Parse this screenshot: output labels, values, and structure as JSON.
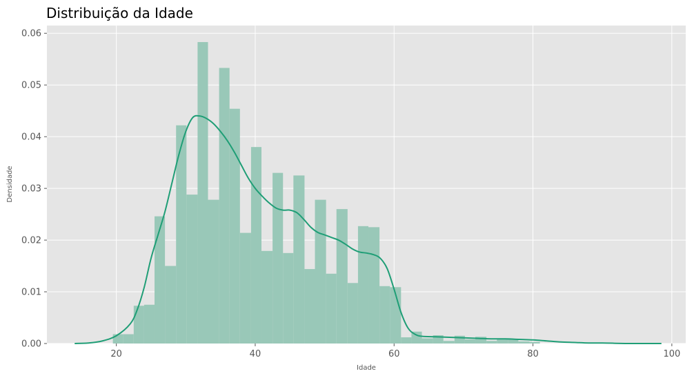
{
  "chart_data": {
    "type": "histogram",
    "title": "Distribuição da Idade",
    "xlabel": "Idade",
    "ylabel": "Densidade",
    "xlim": [
      10,
      102
    ],
    "ylim": [
      0,
      0.0615
    ],
    "xticks": [
      20,
      40,
      60,
      80,
      100
    ],
    "xtick_labels": [
      "20",
      "40",
      "60",
      "80",
      "100"
    ],
    "yticks": [
      0,
      0.01,
      0.02,
      0.03,
      0.04,
      0.05,
      0.06
    ],
    "ytick_labels": [
      "0.00",
      "0.01",
      "0.02",
      "0.03",
      "0.04",
      "0.05",
      "0.06"
    ],
    "grid": true,
    "bars": [
      {
        "x0": 19.5,
        "x1": 21.0,
        "y": 0.0018
      },
      {
        "x0": 21.0,
        "x1": 22.5,
        "y": 0.0018
      },
      {
        "x0": 22.5,
        "x1": 24.0,
        "y": 0.0073
      },
      {
        "x0": 24.0,
        "x1": 25.5,
        "y": 0.0075
      },
      {
        "x0": 25.5,
        "x1": 27.0,
        "y": 0.0246
      },
      {
        "x0": 27.0,
        "x1": 28.6,
        "y": 0.015
      },
      {
        "x0": 28.6,
        "x1": 30.1,
        "y": 0.0422
      },
      {
        "x0": 30.1,
        "x1": 31.7,
        "y": 0.0288
      },
      {
        "x0": 31.7,
        "x1": 33.2,
        "y": 0.0583
      },
      {
        "x0": 33.2,
        "x1": 34.8,
        "y": 0.0278
      },
      {
        "x0": 34.8,
        "x1": 36.3,
        "y": 0.0533
      },
      {
        "x0": 36.3,
        "x1": 37.8,
        "y": 0.0454
      },
      {
        "x0": 37.8,
        "x1": 39.4,
        "y": 0.0214
      },
      {
        "x0": 39.4,
        "x1": 40.9,
        "y": 0.038
      },
      {
        "x0": 40.9,
        "x1": 42.5,
        "y": 0.0179
      },
      {
        "x0": 42.5,
        "x1": 44.0,
        "y": 0.033
      },
      {
        "x0": 44.0,
        "x1": 45.5,
        "y": 0.0175
      },
      {
        "x0": 45.5,
        "x1": 47.1,
        "y": 0.0325
      },
      {
        "x0": 47.1,
        "x1": 48.6,
        "y": 0.0144
      },
      {
        "x0": 48.6,
        "x1": 50.2,
        "y": 0.0278
      },
      {
        "x0": 50.2,
        "x1": 51.7,
        "y": 0.0135
      },
      {
        "x0": 51.7,
        "x1": 53.3,
        "y": 0.026
      },
      {
        "x0": 53.3,
        "x1": 54.8,
        "y": 0.0117
      },
      {
        "x0": 54.8,
        "x1": 56.3,
        "y": 0.0227
      },
      {
        "x0": 56.3,
        "x1": 57.9,
        "y": 0.0225
      },
      {
        "x0": 57.9,
        "x1": 59.4,
        "y": 0.0111
      },
      {
        "x0": 59.4,
        "x1": 61.0,
        "y": 0.0109
      },
      {
        "x0": 61.0,
        "x1": 62.5,
        "y": 0.0012
      },
      {
        "x0": 62.5,
        "x1": 64.0,
        "y": 0.0023
      },
      {
        "x0": 64.0,
        "x1": 65.6,
        "y": 0.001
      },
      {
        "x0": 65.6,
        "x1": 67.1,
        "y": 0.0016
      },
      {
        "x0": 67.1,
        "x1": 68.7,
        "y": 0.0005
      },
      {
        "x0": 68.7,
        "x1": 70.2,
        "y": 0.0015
      },
      {
        "x0": 70.2,
        "x1": 71.7,
        "y": 0.0008
      },
      {
        "x0": 71.7,
        "x1": 73.3,
        "y": 0.0013
      },
      {
        "x0": 73.3,
        "x1": 74.8,
        "y": 0.0005
      },
      {
        "x0": 74.8,
        "x1": 76.4,
        "y": 0.0008
      },
      {
        "x0": 76.4,
        "x1": 77.9,
        "y": 0.0008
      },
      {
        "x0": 77.9,
        "x1": 79.5,
        "y": 0.0004
      },
      {
        "x0": 79.5,
        "x1": 81.0,
        "y": 0.0003
      }
    ],
    "kde": {
      "x": [
        14,
        16,
        18,
        20,
        22,
        23,
        24,
        25,
        26,
        27,
        28,
        29,
        30,
        31,
        32,
        33,
        34,
        35,
        36,
        37,
        38,
        39,
        40,
        41,
        42,
        43,
        44,
        45,
        46,
        47,
        48,
        49,
        50,
        51,
        52,
        53,
        54,
        55,
        56,
        57,
        58,
        59,
        60,
        61,
        62,
        63,
        64,
        66,
        68,
        70,
        72,
        74,
        76,
        78,
        80,
        82,
        84,
        86,
        88,
        90,
        94,
        98.5
      ],
      "y": [
        0.0,
        0.0001,
        0.0005,
        0.0015,
        0.0038,
        0.0065,
        0.0108,
        0.0165,
        0.021,
        0.0255,
        0.031,
        0.0365,
        0.041,
        0.0437,
        0.044,
        0.0435,
        0.0425,
        0.041,
        0.0392,
        0.037,
        0.0345,
        0.032,
        0.03,
        0.0285,
        0.0272,
        0.0262,
        0.0258,
        0.0258,
        0.0253,
        0.024,
        0.0225,
        0.0215,
        0.021,
        0.0205,
        0.02,
        0.0192,
        0.0183,
        0.0177,
        0.0175,
        0.0172,
        0.0165,
        0.0145,
        0.0105,
        0.006,
        0.003,
        0.0018,
        0.0014,
        0.0013,
        0.0012,
        0.0011,
        0.001,
        0.0009,
        0.0009,
        0.0008,
        0.0007,
        0.0005,
        0.0003,
        0.0002,
        0.0001,
        0.0001,
        0.0,
        0.0
      ]
    },
    "colors": {
      "bar": "#99c8b8",
      "line": "#1f9e76",
      "panel_bg": "#e5e5e5",
      "grid": "#ffffff"
    }
  }
}
